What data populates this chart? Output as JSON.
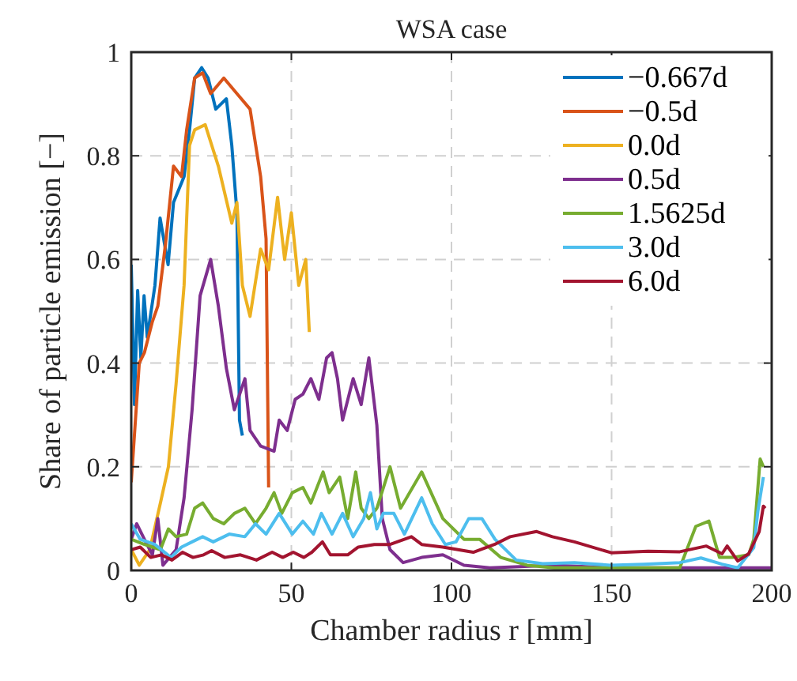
{
  "chart_data": {
    "type": "line",
    "title": "WSA case",
    "xlabel": "Chamber radius r [mm]",
    "ylabel": "Share of particle emission [−]",
    "xlim": [
      0,
      200
    ],
    "ylim": [
      0,
      1
    ],
    "xticks": [
      0,
      50,
      100,
      150,
      200
    ],
    "yticks": [
      0,
      0.2,
      0.4,
      0.6,
      0.8,
      1
    ],
    "grid": true,
    "legend": "top right",
    "line_style": "solid",
    "marker": "none",
    "series": [
      {
        "name": "−0.667d",
        "color": "#0072bd",
        "x": [
          0,
          1,
          2,
          3,
          4,
          5,
          7.4,
          9,
          11.5,
          13.2,
          16.5,
          18.2,
          19.8,
          22,
          24,
          26.4,
          29.7,
          31.4,
          33,
          33.8,
          34.7
        ],
        "values": [
          0.59,
          0.32,
          0.54,
          0.41,
          0.53,
          0.45,
          0.55,
          0.68,
          0.59,
          0.71,
          0.76,
          0.85,
          0.95,
          0.97,
          0.95,
          0.89,
          0.91,
          0.82,
          0.69,
          0.29,
          0.26
        ]
      },
      {
        "name": "−0.5d",
        "color": "#d95319",
        "x": [
          0,
          2.5,
          4.1,
          6.6,
          8.3,
          10.7,
          13.2,
          15.7,
          17.3,
          19.8,
          22.3,
          24.8,
          28.9,
          33,
          37.1,
          40.4,
          42.1,
          42.9
        ],
        "values": [
          0.17,
          0.4,
          0.42,
          0.48,
          0.51,
          0.63,
          0.78,
          0.76,
          0.85,
          0.95,
          0.96,
          0.92,
          0.95,
          0.92,
          0.89,
          0.76,
          0.64,
          0.16
        ]
      },
      {
        "name": "0.0d",
        "color": "#edb120",
        "x": [
          0,
          2.5,
          5.8,
          9.1,
          11.6,
          14,
          16.5,
          18.2,
          19.8,
          23.1,
          27.2,
          31.4,
          33,
          34.7,
          37.1,
          40.4,
          42.9,
          45.7,
          47.9,
          50,
          52.3,
          54.5,
          55.6
        ],
        "values": [
          0.04,
          0.01,
          0.04,
          0.13,
          0.2,
          0.36,
          0.55,
          0.82,
          0.85,
          0.86,
          0.78,
          0.67,
          0.71,
          0.55,
          0.49,
          0.62,
          0.58,
          0.72,
          0.6,
          0.69,
          0.55,
          0.6,
          0.46
        ]
      },
      {
        "name": "0.5d",
        "color": "#7e2f8e",
        "x": [
          0,
          1.7,
          4.1,
          6.6,
          8.3,
          9.9,
          14,
          16.5,
          19,
          21.5,
          24.8,
          27.2,
          29.7,
          32.2,
          35.5,
          37.1,
          40.4,
          44.6,
          46.2,
          48.7,
          51.2,
          53.6,
          56.1,
          58.6,
          61,
          62.7,
          64.4,
          66,
          69.3,
          71.8,
          74.2,
          76.7,
          78.4,
          80.8,
          84.9,
          90.7,
          97.3,
          103.9,
          112,
          132,
          150,
          170,
          190,
          200
        ],
        "values": [
          0.06,
          0.09,
          0.06,
          0.03,
          0.1,
          0.01,
          0.04,
          0.14,
          0.31,
          0.53,
          0.6,
          0.51,
          0.39,
          0.31,
          0.37,
          0.27,
          0.24,
          0.23,
          0.29,
          0.27,
          0.33,
          0.34,
          0.37,
          0.33,
          0.41,
          0.42,
          0.37,
          0.29,
          0.37,
          0.32,
          0.41,
          0.28,
          0.1,
          0.04,
          0.015,
          0.025,
          0.03,
          0.01,
          0.005,
          0.01,
          0.005,
          0.005,
          0.005,
          0.005
        ]
      },
      {
        "name": "1.5625d",
        "color": "#77ac30",
        "x": [
          0,
          4.1,
          9.1,
          11.6,
          14,
          17.3,
          19.8,
          22.3,
          25.6,
          28.9,
          32.2,
          35.5,
          38.8,
          42.1,
          44.6,
          47,
          50.3,
          53.6,
          56.1,
          59.9,
          61.8,
          65.1,
          67.6,
          70.1,
          71.8,
          74.2,
          76.7,
          80.8,
          84.1,
          90.7,
          97.3,
          103.9,
          108.8,
          115.4,
          123.6,
          132,
          150,
          171.3,
          176.3,
          180.4,
          183.7,
          187.8,
          192.8,
          194.4,
          196.4,
          197.4
        ],
        "values": [
          0.06,
          0.05,
          0.04,
          0.08,
          0.065,
          0.07,
          0.12,
          0.13,
          0.1,
          0.09,
          0.11,
          0.12,
          0.09,
          0.12,
          0.15,
          0.11,
          0.15,
          0.16,
          0.13,
          0.19,
          0.15,
          0.18,
          0.1,
          0.19,
          0.12,
          0.1,
          0.12,
          0.2,
          0.12,
          0.19,
          0.1,
          0.06,
          0.06,
          0.025,
          0.01,
          0.005,
          0.005,
          0.005,
          0.085,
          0.095,
          0.025,
          0.025,
          0.03,
          0.06,
          0.215,
          0.2
        ]
      },
      {
        "name": "3.0d",
        "color": "#4dbeee",
        "x": [
          0,
          2.8,
          7.4,
          12.4,
          15.7,
          19,
          22.3,
          25.6,
          30.6,
          35.5,
          38.8,
          42.1,
          46.2,
          50.3,
          53.6,
          56.9,
          59.4,
          62.7,
          66,
          69.3,
          72.6,
          74.7,
          76.7,
          78.7,
          82,
          85.3,
          90.7,
          94,
          98.1,
          101.4,
          105.4,
          109.5,
          113.6,
          120.2,
          128.5,
          138.4,
          149.6,
          160,
          171.3,
          177.9,
          184.5,
          189.4,
          194.4,
          195.7,
          197.4
        ],
        "values": [
          0.09,
          0.06,
          0.05,
          0.025,
          0.045,
          0.055,
          0.065,
          0.055,
          0.07,
          0.065,
          0.09,
          0.07,
          0.11,
          0.07,
          0.095,
          0.07,
          0.11,
          0.07,
          0.11,
          0.065,
          0.1,
          0.15,
          0.08,
          0.11,
          0.11,
          0.07,
          0.14,
          0.09,
          0.05,
          0.055,
          0.1,
          0.1,
          0.06,
          0.02,
          0.013,
          0.015,
          0.01,
          0.012,
          0.015,
          0.024,
          0.012,
          0.005,
          0.044,
          0.115,
          0.18
        ]
      },
      {
        "name": "6.0d",
        "color": "#a2142f",
        "x": [
          0,
          2.8,
          6.1,
          9.4,
          12.7,
          16,
          19.3,
          22.6,
          25.1,
          29.2,
          34.1,
          39.1,
          44,
          47.3,
          50.6,
          53.9,
          56.4,
          59.7,
          62.2,
          67.6,
          70.9,
          75.9,
          80.8,
          87.5,
          90.7,
          97.3,
          106.8,
          113.4,
          118.3,
          126.6,
          131.5,
          138.4,
          149.9,
          161.4,
          171.3,
          179.6,
          184.5,
          186.1,
          189.4,
          192.8,
          196.1,
          197.4,
          198
        ],
        "values": [
          0.04,
          0.045,
          0.025,
          0.03,
          0.02,
          0.035,
          0.025,
          0.03,
          0.038,
          0.025,
          0.03,
          0.02,
          0.035,
          0.025,
          0.035,
          0.025,
          0.035,
          0.055,
          0.03,
          0.03,
          0.045,
          0.05,
          0.05,
          0.065,
          0.05,
          0.045,
          0.035,
          0.05,
          0.065,
          0.075,
          0.065,
          0.055,
          0.034,
          0.037,
          0.036,
          0.047,
          0.032,
          0.047,
          0.018,
          0.032,
          0.075,
          0.124,
          0.12
        ]
      }
    ]
  }
}
